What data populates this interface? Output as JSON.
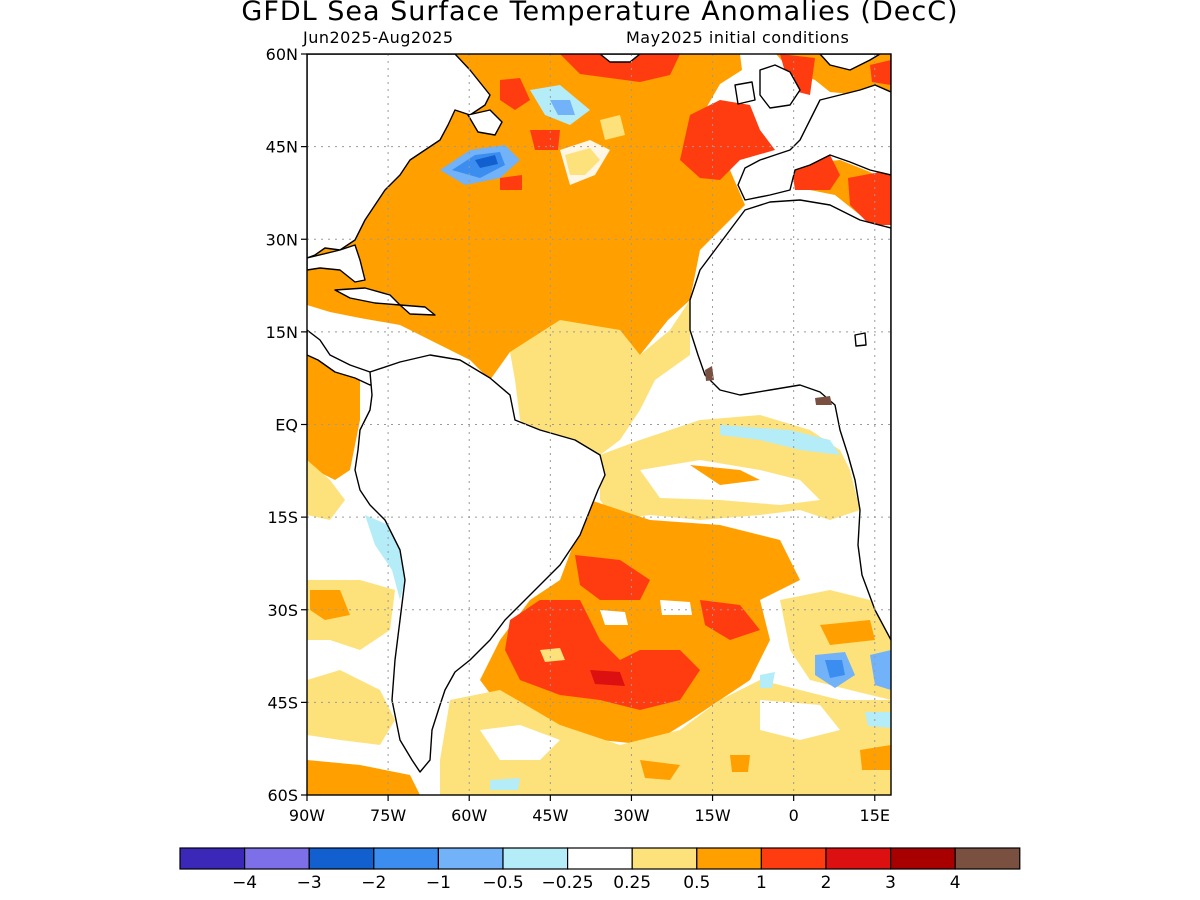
{
  "title": "GFDL Sea Surface Temperature Anomalies (DecC)",
  "subtitle_left": "Jun2025-Aug2025",
  "subtitle_right": "May2025 initial conditions",
  "chart_data": {
    "type": "heatmap",
    "title": "GFDL Sea Surface Temperature Anomalies (DecC)",
    "xlabel": "",
    "ylabel": "",
    "xlim": [
      -90,
      18
    ],
    "ylim": [
      -60,
      60
    ],
    "x_ticks": [
      {
        "value": -90,
        "label": "90W"
      },
      {
        "value": -75,
        "label": "75W"
      },
      {
        "value": -60,
        "label": "60W"
      },
      {
        "value": -45,
        "label": "45W"
      },
      {
        "value": -30,
        "label": "30W"
      },
      {
        "value": -15,
        "label": "15W"
      },
      {
        "value": 0,
        "label": "0"
      },
      {
        "value": 15,
        "label": "15E"
      }
    ],
    "y_ticks": [
      {
        "value": 60,
        "label": "60N"
      },
      {
        "value": 45,
        "label": "45N"
      },
      {
        "value": 30,
        "label": "30N"
      },
      {
        "value": 15,
        "label": "15N"
      },
      {
        "value": 0,
        "label": "EQ"
      },
      {
        "value": -15,
        "label": "15S"
      },
      {
        "value": -30,
        "label": "30S"
      },
      {
        "value": -45,
        "label": "45S"
      },
      {
        "value": -60,
        "label": "60S"
      }
    ],
    "grid": true,
    "colorbar": {
      "colors": [
        "#3c28b8",
        "#7d6fe8",
        "#1260d0",
        "#3b8ef0",
        "#72b2f8",
        "#b4ecf8",
        "#ffffff",
        "#fde27c",
        "#ff9f00",
        "#ff3b10",
        "#dc1010",
        "#a80000",
        "#7a5040"
      ],
      "labels": [
        "−4",
        "−3",
        "−2",
        "−1",
        "−0.5",
        "−0.25",
        "0.25",
        "0.5",
        "1",
        "2",
        "3",
        "4"
      ]
    },
    "anomaly_regions": [
      {
        "name": "North Atlantic",
        "category": "0.5 to 1"
      },
      {
        "name": "Gulf Stream extension",
        "category": "-2 to -1"
      },
      {
        "name": "Northeast Atlantic",
        "category": "1 to 2"
      },
      {
        "name": "Mediterranean",
        "category": "1 to 2"
      },
      {
        "name": "Tropical North Atlantic",
        "category": "0.25 to 0.5"
      },
      {
        "name": "Gulf of Guinea",
        "category": "-0.5 to -0.25"
      },
      {
        "name": "South Atlantic midlatitudes",
        "category": "1 to 2"
      },
      {
        "name": "Southeast Pacific coast",
        "category": "0.5 to 1"
      },
      {
        "name": "Agulhas region",
        "category": "-1 to -0.5"
      }
    ]
  }
}
